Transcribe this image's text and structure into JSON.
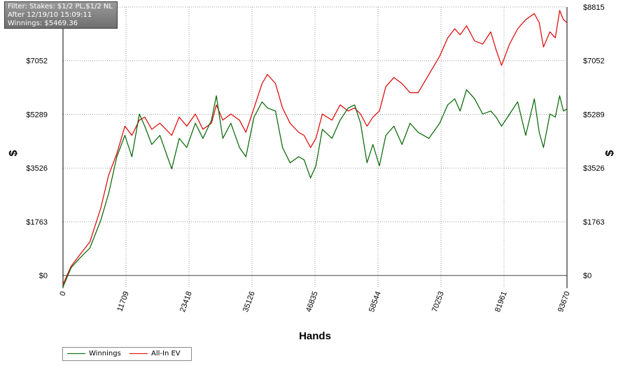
{
  "info": {
    "filter": "Filter: Stakes: $1/2 PL,$1/2 NL",
    "after": "After 12/19/10 15:09:11",
    "winnings": "Winnings: $5469.36"
  },
  "colors": {
    "winnings": "#006400",
    "allin_ev": "#dd0000",
    "grid": "#9a9a9a"
  },
  "chart_data": {
    "type": "line",
    "xlabel": "Hands",
    "ylabel": "$",
    "xlim": [
      0,
      93670
    ],
    "ylim": [
      -420,
      8815
    ],
    "x_ticks": [
      0,
      11709,
      23418,
      35126,
      46835,
      58544,
      70253,
      81961,
      93670
    ],
    "y_ticks": [
      {
        "value": 0,
        "label": "$0"
      },
      {
        "value": 1763,
        "label": "$1763"
      },
      {
        "value": 3526,
        "label": "$3526"
      },
      {
        "value": 5289,
        "label": "$5289"
      },
      {
        "value": 7052,
        "label": "$7052"
      },
      {
        "value": 8815,
        "label": "$8815"
      }
    ],
    "grid": true,
    "legend_position": "bottom-left",
    "series": [
      {
        "name": "Winnings",
        "color": "#006400",
        "x": [
          0,
          1500,
          3000,
          5000,
          7000,
          8500,
          10000,
          11500,
          12800,
          14200,
          15200,
          16500,
          18000,
          20200,
          21600,
          23000,
          24600,
          26000,
          27600,
          28500,
          29700,
          31200,
          32800,
          34000,
          35500,
          37000,
          38000,
          39500,
          40800,
          42200,
          43800,
          44800,
          46000,
          47000,
          48200,
          50000,
          51500,
          53000,
          54200,
          55300,
          56500,
          57600,
          58800,
          60000,
          61500,
          63000,
          64500,
          66000,
          68000,
          70000,
          71500,
          72800,
          73800,
          75000,
          76500,
          78000,
          79500,
          80500,
          81500,
          83000,
          84500,
          86000,
          87600,
          88500,
          89300,
          90500,
          91500,
          92300,
          93000,
          93670
        ],
        "y": [
          -380,
          250,
          550,
          900,
          1800,
          2700,
          3900,
          4600,
          3900,
          5300,
          4900,
          4300,
          4600,
          3500,
          4500,
          4200,
          5000,
          4500,
          5100,
          5900,
          4500,
          5000,
          4200,
          3900,
          5200,
          5700,
          5500,
          5400,
          4200,
          3700,
          3900,
          3800,
          3200,
          3600,
          4800,
          4500,
          5100,
          5500,
          5600,
          5000,
          3700,
          4300,
          3600,
          4600,
          4900,
          4300,
          5000,
          4700,
          4500,
          5000,
          5600,
          5800,
          5400,
          6100,
          5800,
          5300,
          5400,
          5200,
          4900,
          5300,
          5700,
          4600,
          5800,
          4700,
          4200,
          5300,
          5200,
          5900,
          5400,
          5469
        ]
      },
      {
        "name": "All-In EV",
        "color": "#dd0000",
        "x": [
          0,
          1500,
          3000,
          5000,
          7000,
          8500,
          10000,
          11500,
          12800,
          14200,
          15200,
          16500,
          18000,
          20200,
          21600,
          23000,
          24600,
          26000,
          27600,
          28500,
          29700,
          31200,
          32800,
          34000,
          35500,
          37000,
          38000,
          39500,
          40800,
          42200,
          43800,
          44800,
          46000,
          47000,
          48200,
          50000,
          51500,
          53000,
          54200,
          55300,
          56500,
          57600,
          58800,
          60000,
          61500,
          63000,
          64500,
          66000,
          68000,
          70000,
          71500,
          72800,
          73800,
          75000,
          76500,
          78000,
          79500,
          80500,
          81500,
          83000,
          84500,
          86000,
          87600,
          88500,
          89300,
          90500,
          91500,
          92300,
          93000,
          93670
        ],
        "y": [
          -300,
          300,
          650,
          1100,
          2200,
          3300,
          4000,
          4900,
          4600,
          5100,
          5200,
          4800,
          5000,
          4600,
          5200,
          4900,
          5300,
          4800,
          5000,
          5600,
          5100,
          5300,
          5100,
          4700,
          5500,
          6300,
          6600,
          6300,
          5500,
          5000,
          4700,
          4600,
          4200,
          4500,
          5300,
          5100,
          5600,
          5400,
          5500,
          5300,
          4900,
          5200,
          5400,
          6200,
          6500,
          6300,
          6000,
          6000,
          6600,
          7200,
          7800,
          8100,
          7900,
          8200,
          7700,
          7600,
          8000,
          7400,
          6900,
          7600,
          8100,
          8400,
          8600,
          8300,
          7500,
          8000,
          7800,
          8700,
          8400,
          8300
        ]
      }
    ]
  }
}
